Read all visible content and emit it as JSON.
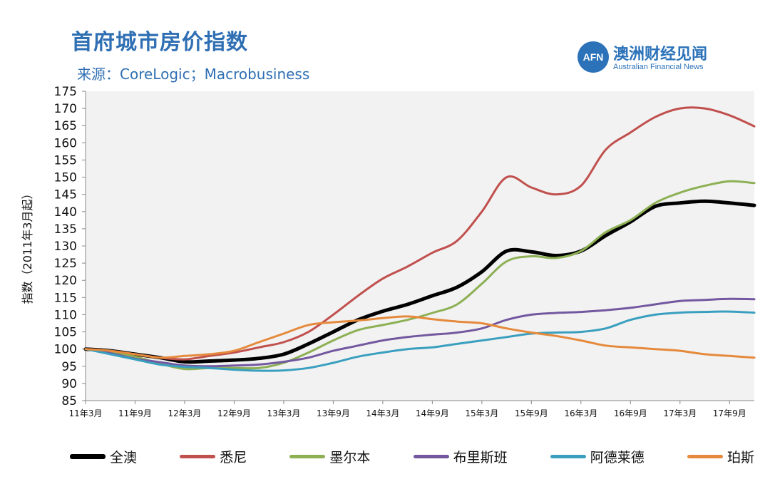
{
  "brand": {
    "logo_text": "AFN",
    "name": "澳洲财经见闻",
    "subtitle": "Australian Financial News"
  },
  "chart_data": {
    "type": "line",
    "title": "首府城市房价指数",
    "subtitle": "来源：CoreLogic；Macrobusiness",
    "xlabel": "",
    "ylabel": "指数（2011年3月起）",
    "ylim": [
      85,
      175
    ],
    "yticks": [
      85,
      90,
      95,
      100,
      105,
      110,
      115,
      120,
      125,
      130,
      135,
      140,
      145,
      150,
      155,
      160,
      165,
      170,
      175
    ],
    "x": [
      "11年3月",
      "11年6月",
      "11年9月",
      "11年12月",
      "12年3月",
      "12年6月",
      "12年9月",
      "12年12月",
      "13年3月",
      "13年6月",
      "13年9月",
      "13年12月",
      "14年3月",
      "14年6月",
      "14年9月",
      "14年12月",
      "15年3月",
      "15年6月",
      "15年9月",
      "15年12月",
      "16年3月",
      "16年6月",
      "16年9月",
      "16年12月",
      "17年3月",
      "17年6月",
      "17年9月",
      "17年12月"
    ],
    "xticks": [
      "11年3月",
      "11年9月",
      "12年3月",
      "12年9月",
      "13年3月",
      "13年9月",
      "14年3月",
      "14年9月",
      "15年3月",
      "15年9月",
      "16年3月",
      "16年9月",
      "17年3月",
      "17年9月"
    ],
    "grid": false,
    "legend_position": "bottom",
    "series": [
      {
        "name": "全澳",
        "color": "#000000",
        "width": 5,
        "values": [
          100,
          99.5,
          98.5,
          97.5,
          96.3,
          96.5,
          96.8,
          97.3,
          98.5,
          101.5,
          105,
          108.5,
          111,
          113,
          115.5,
          118,
          122.5,
          128.5,
          128.3,
          127.2,
          128.5,
          133,
          137,
          141.5,
          142.5,
          143,
          142.5,
          141.8
        ]
      },
      {
        "name": "悉尼",
        "color": "#c0504d",
        "width": 3,
        "values": [
          100,
          99.5,
          98.5,
          97.5,
          97,
          98,
          99,
          100.5,
          102,
          105,
          110,
          115.5,
          120.5,
          124,
          128,
          131.5,
          140,
          150,
          147,
          145,
          147.5,
          158,
          163,
          167.5,
          170,
          170,
          168,
          164.8
        ]
      },
      {
        "name": "墨尔本",
        "color": "#8db054",
        "width": 3,
        "values": [
          100,
          99.2,
          97.8,
          95.8,
          94.2,
          94.5,
          94.5,
          94.5,
          96,
          99,
          102.5,
          105.5,
          107,
          108.5,
          110.5,
          113,
          119,
          125.5,
          127,
          126.5,
          128.5,
          134,
          137.5,
          142.5,
          145.5,
          147.5,
          148.8,
          148.3
        ]
      },
      {
        "name": "布里斯班",
        "color": "#7358a0",
        "width": 3,
        "values": [
          100,
          98.8,
          97.2,
          96.2,
          95.2,
          95,
          95.2,
          95.5,
          96.3,
          97.5,
          99.5,
          101,
          102.5,
          103.5,
          104.2,
          104.8,
          106,
          108.5,
          110,
          110.5,
          110.8,
          111.3,
          112,
          113,
          114,
          114.3,
          114.6,
          114.5
        ]
      },
      {
        "name": "阿德莱德",
        "color": "#3a9fbf",
        "width": 3,
        "values": [
          100,
          98.5,
          97,
          95.5,
          94.8,
          94.5,
          94,
          93.7,
          93.8,
          94.5,
          96,
          97.8,
          99,
          100,
          100.5,
          101.5,
          102.5,
          103.5,
          104.5,
          104.8,
          105,
          106,
          108.5,
          110,
          110.6,
          110.8,
          110.9,
          110.6
        ]
      },
      {
        "name": "珀斯",
        "color": "#e58a3c",
        "width": 3,
        "values": [
          100,
          99.5,
          98.5,
          97.5,
          98,
          98.5,
          99.5,
          102,
          104.5,
          107,
          107.8,
          108.3,
          109,
          109.5,
          108.7,
          108,
          107.5,
          106,
          104.8,
          103.8,
          102.5,
          101,
          100.5,
          100,
          99.5,
          98.5,
          98,
          97.5
        ]
      }
    ]
  }
}
